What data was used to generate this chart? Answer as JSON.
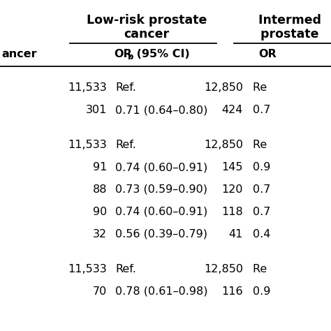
{
  "col1_header_line1": "Low-risk prostate",
  "col1_header_line2": "cancer",
  "col2_header_line1": "Intermed⁠",
  "col2_header_line2": "prostate⁠",
  "subheader_left": "ancer",
  "subheader_col1_or": "OR",
  "subheader_col1_sup": "b",
  "subheader_col1_rest": " (95% CI)",
  "subheader_col2": "OR",
  "rows": [
    {
      "n1": "11,533",
      "or1": "Ref.",
      "n2": "12,850",
      "or2": "Re⁠"
    },
    {
      "n1": "301",
      "or1": "0.71 (0.64–0.80)",
      "n2": "424",
      "or2": "0.7"
    },
    {
      "n1": "",
      "or1": "",
      "n2": "",
      "or2": ""
    },
    {
      "n1": "11,533",
      "or1": "Ref.",
      "n2": "12,850",
      "or2": "Re⁠"
    },
    {
      "n1": "91",
      "or1": "0.74 (0.60–0.91)",
      "n2": "145",
      "or2": "0.9"
    },
    {
      "n1": "88",
      "or1": "0.73 (0.59–0.90)",
      "n2": "120",
      "or2": "0.7"
    },
    {
      "n1": "90",
      "or1": "0.74 (0.60–0.91)",
      "n2": "118",
      "or2": "0.7"
    },
    {
      "n1": "32",
      "or1": "0.56 (0.39–0.79)",
      "n2": "41",
      "or2": "0.4"
    },
    {
      "n1": "",
      "or1": "",
      "n2": "",
      "or2": ""
    },
    {
      "n1": "11,533",
      "or1": "Ref.",
      "n2": "12,850",
      "or2": "Re⁠"
    },
    {
      "n1": "70",
      "or1": "0.78 (0.61–0.98)",
      "n2": "116",
      "or2": "0.9"
    }
  ],
  "bg_color": "#ffffff",
  "text_color": "#000000",
  "header_line_color": "#000000",
  "font_size": 11.5,
  "header_font_size": 12.5
}
